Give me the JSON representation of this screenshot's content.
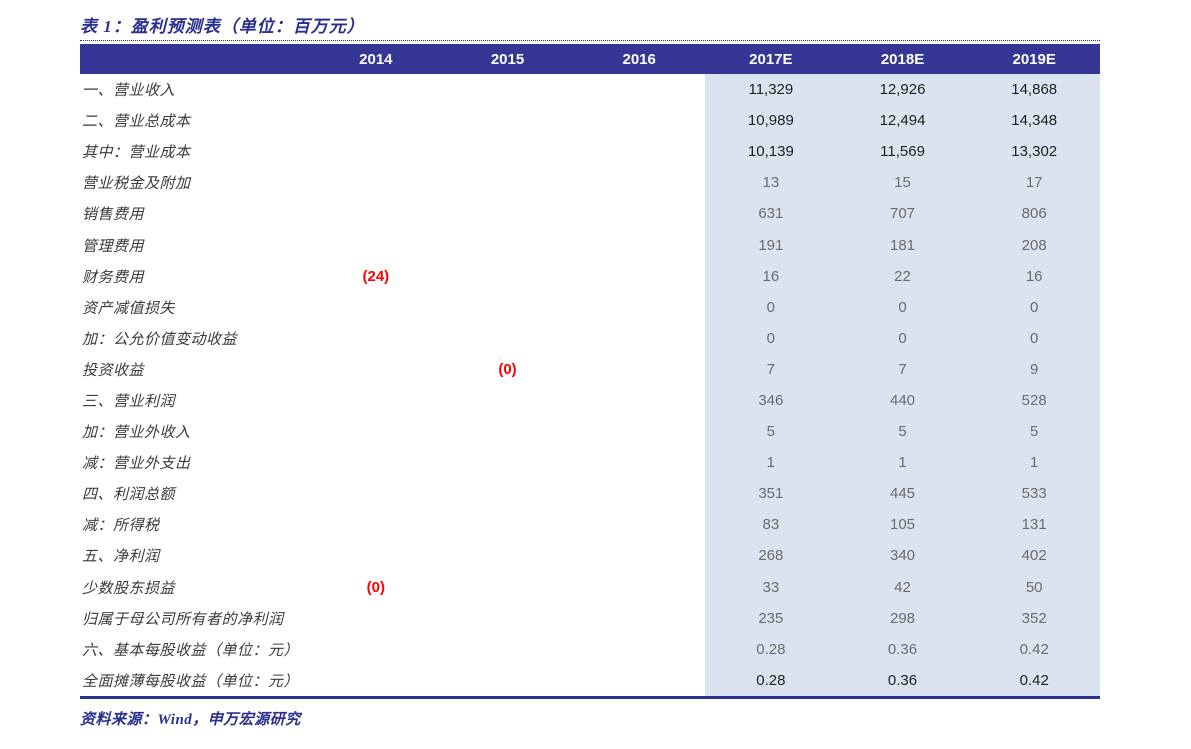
{
  "title": "表 1：盈利预测表（单位：百万元）",
  "footer": "资料来源：Wind，申万宏源研究",
  "colors": {
    "header_bg": "#363795",
    "header_text": "#ffffff",
    "highlight_column_bg": "#dce3f0",
    "title_footer_navy": "#2b2f90",
    "value_gray": "#6b6b6b",
    "value_dark": "#1f1f1f",
    "negative_red": "#ff0000"
  },
  "table": {
    "columns": [
      "",
      "2014",
      "2015",
      "2016",
      "2017E",
      "2018E",
      "2019E"
    ],
    "highlight_columns": [
      "2017E",
      "2018E",
      "2019E"
    ],
    "rows": [
      {
        "label": "一、营业收入",
        "values": [
          "",
          "",
          "",
          "11,329",
          "12,926",
          "14,868"
        ],
        "bold": true,
        "red_cols": []
      },
      {
        "label": "二、营业总成本",
        "values": [
          "",
          "",
          "",
          "10,989",
          "12,494",
          "14,348"
        ],
        "bold": true,
        "red_cols": []
      },
      {
        "label": "其中：营业成本",
        "values": [
          "",
          "",
          "",
          "10,139",
          "11,569",
          "13,302"
        ],
        "bold": true,
        "red_cols": []
      },
      {
        "label": "营业税金及附加",
        "values": [
          "",
          "",
          "",
          "13",
          "15",
          "17"
        ],
        "bold": false,
        "red_cols": []
      },
      {
        "label": "销售费用",
        "values": [
          "",
          "",
          "",
          "631",
          "707",
          "806"
        ],
        "bold": false,
        "red_cols": []
      },
      {
        "label": "管理费用",
        "values": [
          "",
          "",
          "",
          "191",
          "181",
          "208"
        ],
        "bold": false,
        "red_cols": []
      },
      {
        "label": "财务费用",
        "values": [
          "(24)",
          "",
          "",
          "16",
          "22",
          "16"
        ],
        "bold": false,
        "red_cols": [
          0
        ]
      },
      {
        "label": "资产减值损失",
        "values": [
          "",
          "",
          "",
          "0",
          "0",
          "0"
        ],
        "bold": false,
        "red_cols": []
      },
      {
        "label": "加：公允价值变动收益",
        "values": [
          "",
          "",
          "",
          "0",
          "0",
          "0"
        ],
        "bold": false,
        "red_cols": []
      },
      {
        "label": "投资收益",
        "values": [
          "",
          "(0)",
          "",
          "7",
          "7",
          "9"
        ],
        "bold": false,
        "red_cols": [
          1
        ]
      },
      {
        "label": "三、营业利润",
        "values": [
          "",
          "",
          "",
          "346",
          "440",
          "528"
        ],
        "bold": false,
        "red_cols": []
      },
      {
        "label": "加：营业外收入",
        "values": [
          "",
          "",
          "",
          "5",
          "5",
          "5"
        ],
        "bold": false,
        "red_cols": []
      },
      {
        "label": "减：营业外支出",
        "values": [
          "",
          "",
          "",
          "1",
          "1",
          "1"
        ],
        "bold": false,
        "red_cols": []
      },
      {
        "label": "四、利润总额",
        "values": [
          "",
          "",
          "",
          "351",
          "445",
          "533"
        ],
        "bold": false,
        "red_cols": []
      },
      {
        "label": "减：所得税",
        "values": [
          "",
          "",
          "",
          "83",
          "105",
          "131"
        ],
        "bold": false,
        "red_cols": []
      },
      {
        "label": "五、净利润",
        "values": [
          "",
          "",
          "",
          "268",
          "340",
          "402"
        ],
        "bold": false,
        "red_cols": []
      },
      {
        "label": "少数股东损益",
        "values": [
          "(0)",
          "",
          "",
          "33",
          "42",
          "50"
        ],
        "bold": false,
        "red_cols": [
          0
        ]
      },
      {
        "label": "归属于母公司所有者的净利润",
        "values": [
          "",
          "",
          "",
          "235",
          "298",
          "352"
        ],
        "bold": false,
        "red_cols": []
      },
      {
        "label": "六、基本每股收益（单位：元）",
        "values": [
          "",
          "",
          "",
          "0.28",
          "0.36",
          "0.42"
        ],
        "bold": false,
        "red_cols": []
      },
      {
        "label": "全面摊薄每股收益（单位：元）",
        "values": [
          "",
          "",
          "",
          "0.28",
          "0.36",
          "0.42"
        ],
        "bold": true,
        "red_cols": []
      }
    ]
  }
}
